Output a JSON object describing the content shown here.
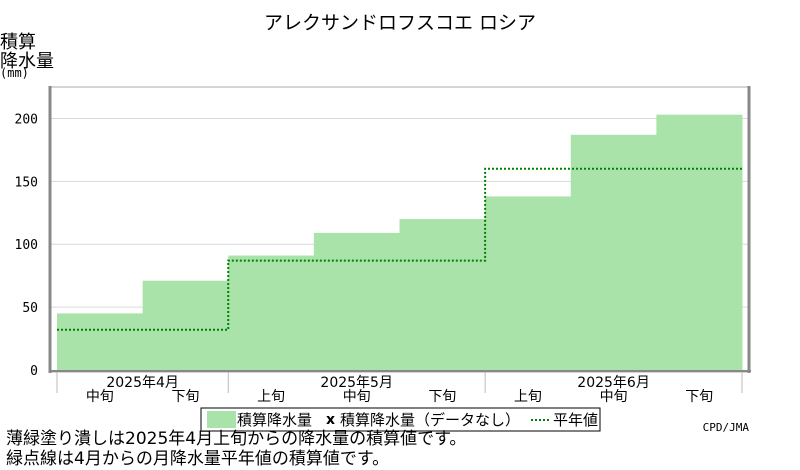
{
  "chart_data": {
    "type": "bar",
    "title": "アレクサンドロフスコエ ロシア",
    "ylabel_lines": [
      "積算",
      "降水量",
      "(mm)"
    ],
    "yticks": [
      0,
      50,
      100,
      150,
      200
    ],
    "ylim": [
      0,
      225
    ],
    "grid": true,
    "categories": [
      "2025年4月 中旬",
      "2025年4月 下旬",
      "2025年5月 上旬",
      "2025年5月 中旬",
      "2025年5月 下旬",
      "2025年6月 上旬",
      "2025年6月 中旬",
      "2025年6月 下旬"
    ],
    "dekad_labels": [
      "中旬",
      "下旬",
      "上旬",
      "中旬",
      "下旬",
      "上旬",
      "中旬",
      "下旬"
    ],
    "month_labels": [
      "2025年4月",
      "2025年5月",
      "2025年6月"
    ],
    "series": [
      {
        "name": "積算降水量",
        "values": [
          45,
          71,
          91,
          109,
          120,
          138,
          187,
          203
        ],
        "color": "#aae3a9"
      },
      {
        "name": "平年値",
        "values": [
          32,
          32,
          87,
          87,
          87,
          160,
          160,
          160
        ],
        "color": "#008000",
        "style": "dotted"
      }
    ],
    "legend": {
      "position": "bottom",
      "items": [
        {
          "label": "積算降水量",
          "kind": "swatch",
          "color": "#aae3a9"
        },
        {
          "label": "積算降水量（データなし）",
          "kind": "marker",
          "symbol": "x"
        },
        {
          "label": "平年値",
          "kind": "dotted-line",
          "color": "#008000"
        }
      ]
    },
    "source": "CPD/JMA"
  },
  "footnotes": [
    "薄緑塗り潰しは2025年4月上旬からの降水量の積算値です。",
    "緑点線は4月からの月降水量平年値の積算値です。"
  ]
}
